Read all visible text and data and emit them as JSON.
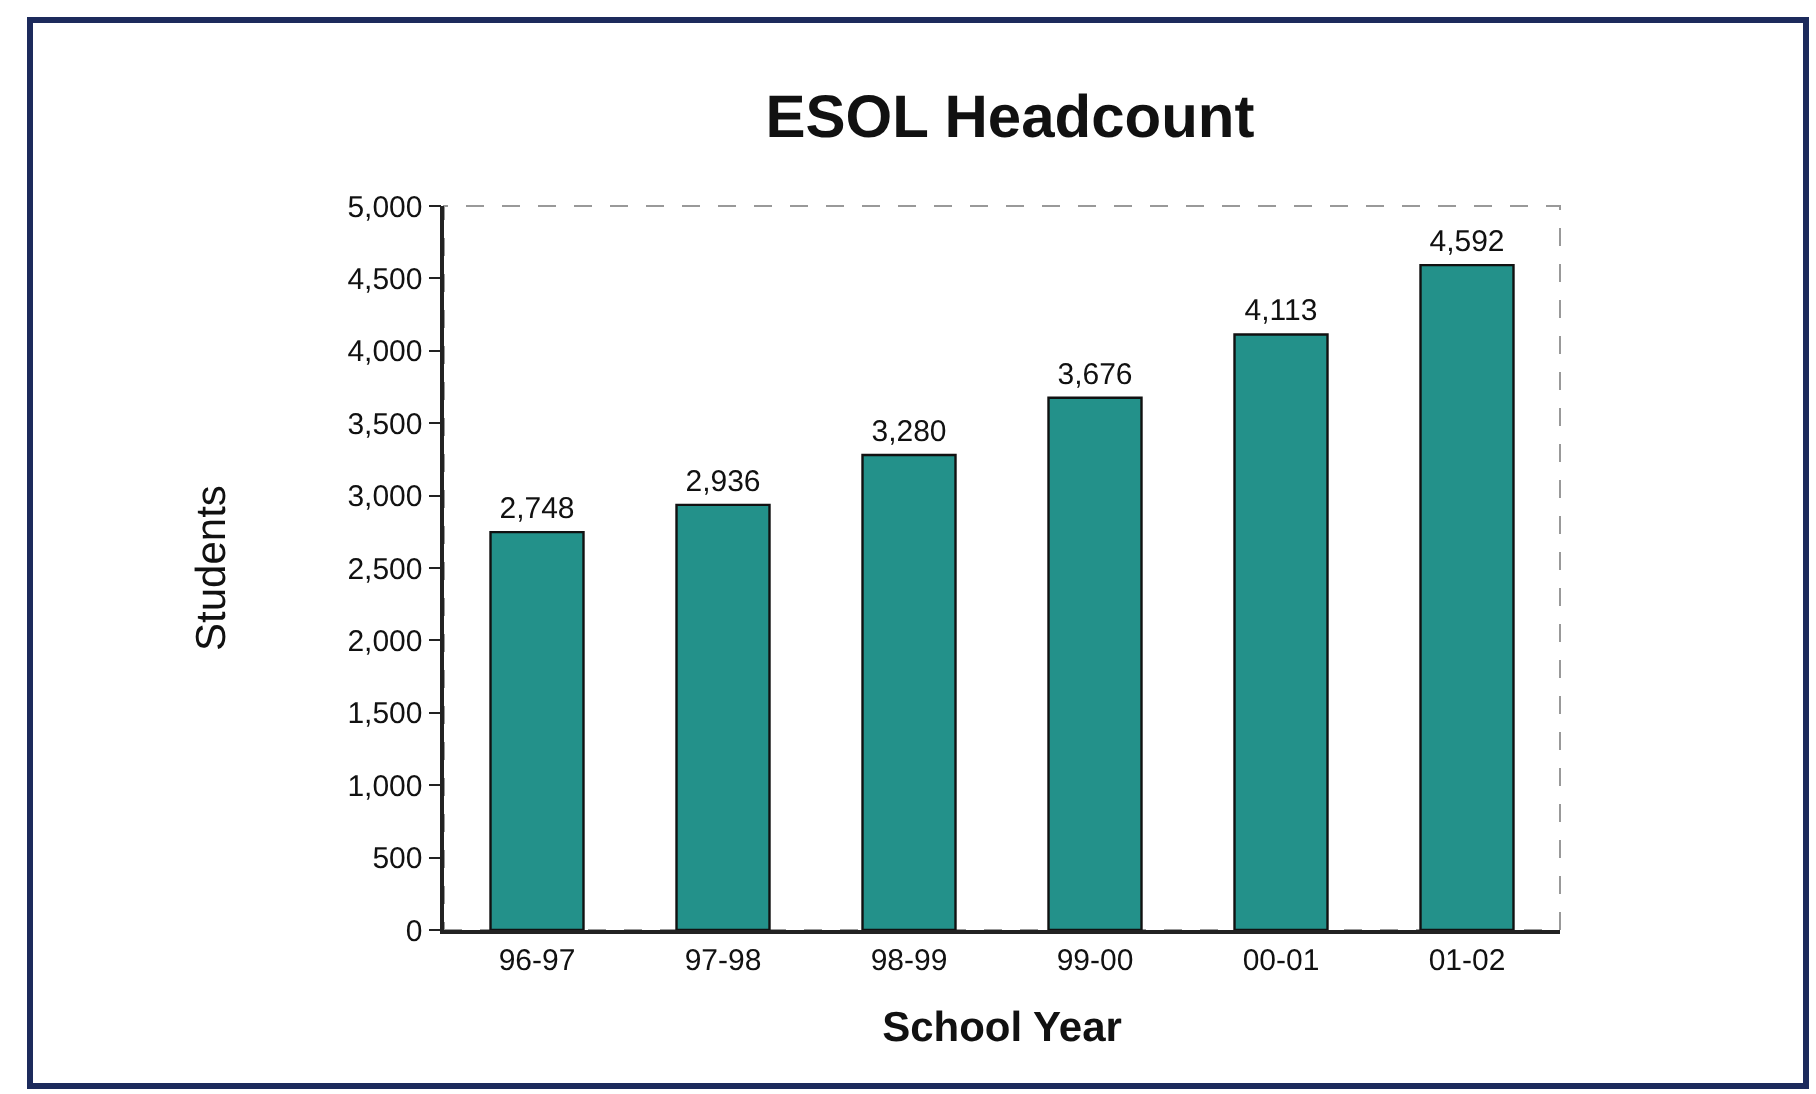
{
  "chart_data": {
    "type": "bar",
    "title": "ESOL Headcount",
    "xlabel": "School Year",
    "ylabel": "Students",
    "categories": [
      "96-97",
      "97-98",
      "98-99",
      "99-00",
      "00-01",
      "01-02"
    ],
    "values": [
      2748,
      2936,
      3280,
      3676,
      4113,
      4592
    ],
    "color": "#23918a",
    "value_labels": [
      "2,748",
      "2,936",
      "3,280",
      "3,676",
      "4,113",
      "4,592"
    ],
    "ylim": [
      0,
      5000
    ],
    "yticks": [
      {
        "value": 0,
        "label": "0"
      },
      {
        "value": 500,
        "label": "500"
      },
      {
        "value": 1000,
        "label": "1,000"
      },
      {
        "value": 1500,
        "label": "1,500"
      },
      {
        "value": 2000,
        "label": "2,000"
      },
      {
        "value": 2500,
        "label": "2,500"
      },
      {
        "value": 3000,
        "label": "3,000"
      },
      {
        "value": 3500,
        "label": "3,500"
      },
      {
        "value": 4000,
        "label": "4,000"
      },
      {
        "value": 4500,
        "label": "4,500"
      },
      {
        "value": 5000,
        "label": "5,000"
      }
    ],
    "grid": false,
    "legend": false
  }
}
